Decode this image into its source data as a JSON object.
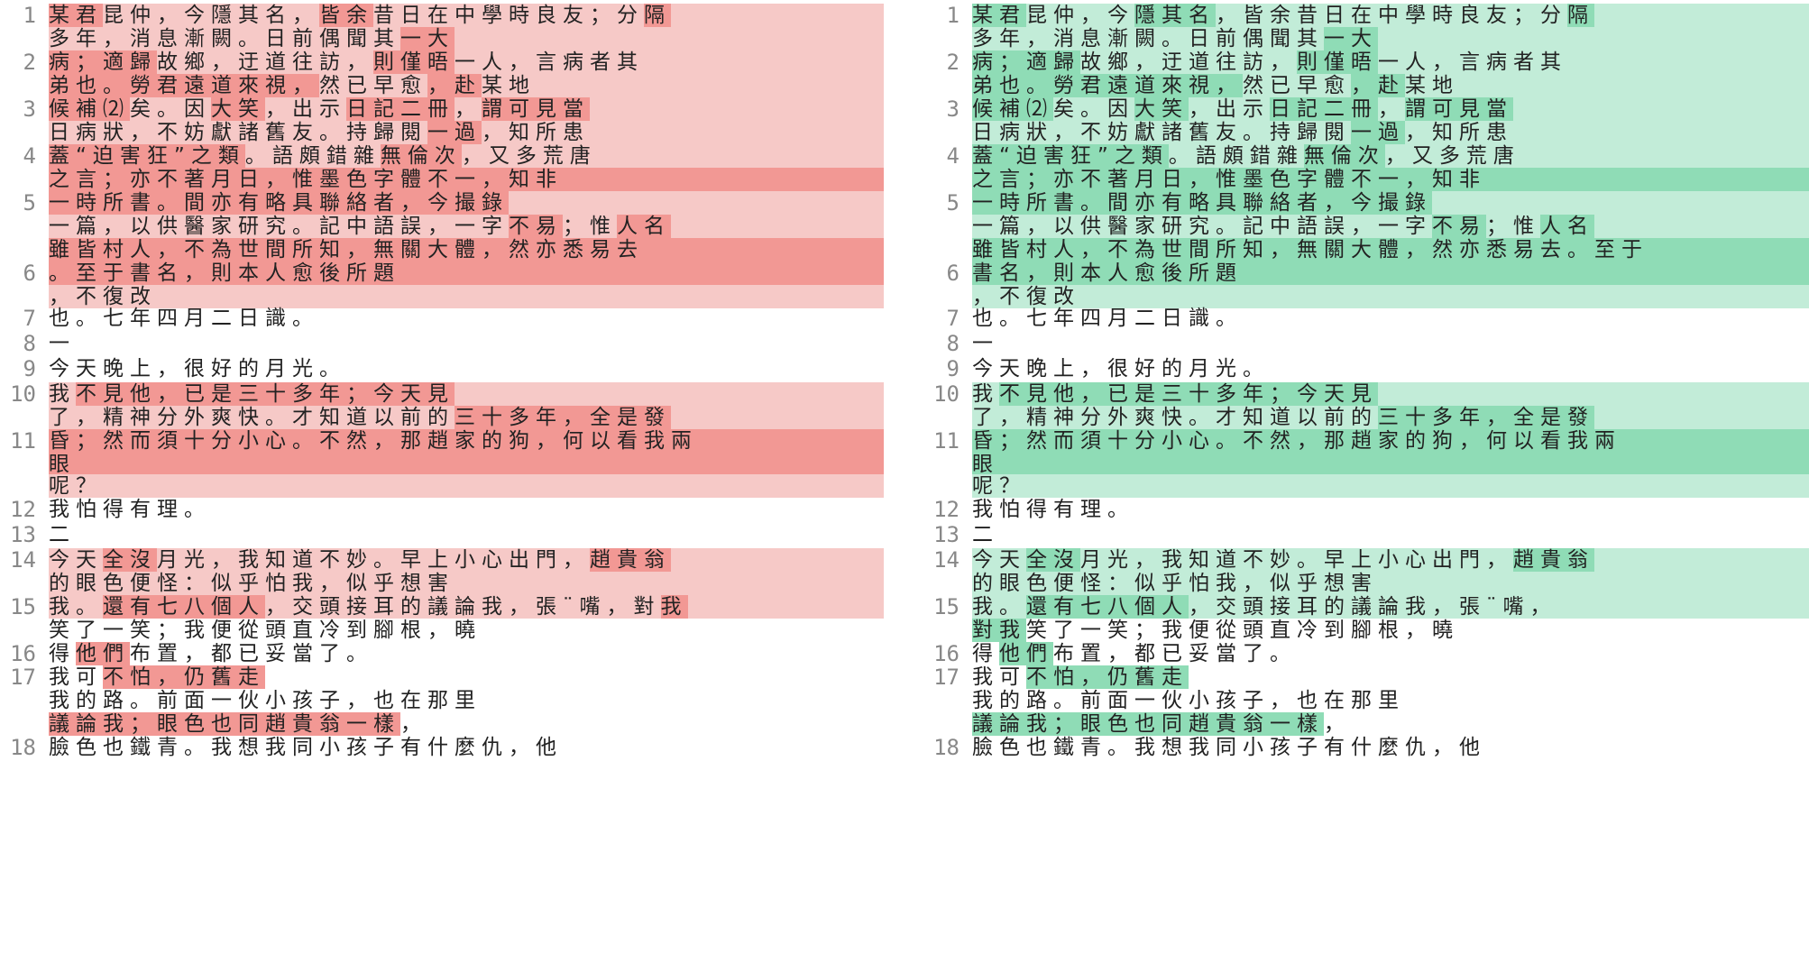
{
  "theme": {
    "left_light": "#f6c9c7",
    "left_dark": "#f29894",
    "right_light": "#c2ecd8",
    "right_dark": "#8fdcb6"
  },
  "left": {
    "lines": [
      {
        "no": "1",
        "text": "某君昆仲，今隱其名，皆余昔日在中學時良友；分隔",
        "band": "light",
        "hl": [
          [
            0,
            2
          ],
          [
            10,
            12
          ],
          [
            22,
            25
          ]
        ]
      },
      {
        "no": "",
        "text": "多年，消息漸闕。日前偶聞其一大",
        "band": "light",
        "hl": [
          [
            13,
            15
          ]
        ]
      },
      {
        "no": "2",
        "text": "病；適歸故鄉，迂道往訪，則僅晤一人，言病者其",
        "band": "light",
        "hl": [
          [
            0,
            4
          ],
          [
            12,
            15
          ]
        ]
      },
      {
        "no": "",
        "text": "弟也。勞君遠道來視，然已早愈，赴某地",
        "band": "light",
        "hl": [
          [
            0,
            10
          ],
          [
            14,
            16
          ]
        ]
      },
      {
        "no": "3",
        "text": "候補⑵矣。因大笑，出示日記二冊，謂可見當",
        "band": "light",
        "hl": [
          [
            0,
            3
          ],
          [
            6,
            8
          ],
          [
            11,
            15
          ],
          [
            16,
            20
          ]
        ]
      },
      {
        "no": "",
        "text": "日病狀，不妨獻諸舊友。持歸閱一過，知所患",
        "band": "light",
        "hl": [
          [
            14,
            16
          ]
        ]
      },
      {
        "no": "4",
        "text": "蓋“迫害狂”之類。語頗錯雜無倫次，又多荒唐",
        "band": "light",
        "hl": [
          [
            0,
            8
          ],
          [
            13,
            16
          ]
        ]
      },
      {
        "no": "",
        "text": "之言；亦不著月日，惟墨色字體不一，知非",
        "band": "dark",
        "hl": []
      },
      {
        "no": "5",
        "text": "一時所書。間亦有略具聯絡者，今撮錄",
        "band": "light",
        "hl": [
          [
            0,
            18
          ]
        ]
      },
      {
        "no": "",
        "text": "一篇，以供醫家研究。記中語誤，一字不易；惟人名",
        "band": "light",
        "hl": [
          [
            17,
            19
          ],
          [
            21,
            24
          ]
        ]
      },
      {
        "no": "",
        "text": "雖皆村人，不為世間所知，無關大體，然亦悉易去",
        "band": "dark",
        "hl": []
      },
      {
        "no": "6",
        "text": "。至于書名，則本人愈後所題",
        "band": "dark",
        "hl": []
      },
      {
        "no": "",
        "text": "，不復改",
        "band": "light",
        "hl": []
      },
      {
        "no": "7",
        "text": "也。七年四月二日識。",
        "band": "none",
        "hl": []
      },
      {
        "no": "8",
        "text": "一",
        "band": "none",
        "hl": []
      },
      {
        "no": "9",
        "text": "今天晚上，很好的月光。",
        "band": "none",
        "hl": []
      },
      {
        "no": "10",
        "text": "我不見他，已是三十多年；今天見",
        "band": "light",
        "hl": [
          [
            1,
            15
          ]
        ]
      },
      {
        "no": "",
        "text": "了，精神分外爽快。才知道以前的三十多年，全是發",
        "band": "light",
        "hl": [
          [
            15,
            23
          ]
        ]
      },
      {
        "no": "11",
        "text": "昏；然而須十分小心。不然，那趙家的狗，何以看我兩",
        "band": "dark",
        "hl": []
      },
      {
        "no": "",
        "text": "眼",
        "band": "dark",
        "hl": []
      },
      {
        "no": "",
        "text": "呢？",
        "band": "light",
        "hl": []
      },
      {
        "no": "12",
        "text": "我怕得有理。",
        "band": "none",
        "hl": []
      },
      {
        "no": "13",
        "text": "二",
        "band": "none",
        "hl": []
      },
      {
        "no": "14",
        "text": "今天全沒月光，我知道不妙。早上小心出門，趙貴翁",
        "band": "light",
        "hl": [
          [
            2,
            4
          ],
          [
            20,
            23
          ]
        ]
      },
      {
        "no": "",
        "text": "的眼色便怪：似乎怕我，似乎想害",
        "band": "light",
        "hl": []
      },
      {
        "no": "15",
        "text": "我。還有七八個人，交頭接耳的議論我，張¨嘴，對我",
        "band": "light",
        "hl": [
          [
            2,
            8
          ],
          [
            23,
            25
          ]
        ]
      },
      {
        "no": "",
        "text": "笑了一笑；我便從頭直冷到腳根，曉",
        "band": "none",
        "hl": []
      },
      {
        "no": "16",
        "text": "得他們布置，都已妥當了。",
        "band": "none",
        "hl": [
          [
            1,
            3
          ]
        ]
      },
      {
        "no": "17",
        "text": "我可不怕，仍舊走",
        "band": "none",
        "hl": [
          [
            2,
            8
          ]
        ]
      },
      {
        "no": "",
        "text": "我的路。前面一伙小孩子，也在那里",
        "band": "none",
        "hl": []
      },
      {
        "no": "",
        "text": "議論我；眼色也同趙貴翁一樣，",
        "band": "none",
        "hl": [
          [
            0,
            13
          ]
        ]
      },
      {
        "no": "18",
        "text": "臉色也鐵青。我想我同小孩子有什麼仇，他",
        "band": "none",
        "hl": []
      }
    ]
  },
  "right": {
    "lines": [
      {
        "no": "1",
        "text": "某君昆仲，今隱其名，皆余昔日在中學時良友；分隔",
        "band": "light",
        "hl": [
          [
            0,
            2
          ],
          [
            6,
            9
          ],
          [
            22,
            25
          ]
        ]
      },
      {
        "no": "",
        "text": "多年，消息漸闕。日前偶聞其一大",
        "band": "light",
        "hl": [
          [
            13,
            15
          ]
        ]
      },
      {
        "no": "2",
        "text": "病；適歸故鄉，迂道往訪，則僅晤一人，言病者其",
        "band": "light",
        "hl": [
          [
            0,
            4
          ],
          [
            12,
            15
          ]
        ]
      },
      {
        "no": "",
        "text": "弟也。勞君遠道來視，然已早愈，赴某地",
        "band": "light",
        "hl": [
          [
            0,
            10
          ],
          [
            14,
            16
          ]
        ]
      },
      {
        "no": "3",
        "text": "候補⑵矣。因大笑，出示日記二冊，謂可見當",
        "band": "light",
        "hl": [
          [
            0,
            3
          ],
          [
            6,
            8
          ],
          [
            11,
            15
          ],
          [
            16,
            20
          ]
        ]
      },
      {
        "no": "",
        "text": "日病狀，不妨獻諸舊友。持歸閱一過，知所患",
        "band": "light",
        "hl": [
          [
            14,
            16
          ]
        ]
      },
      {
        "no": "4",
        "text": "蓋“迫害狂”之類。語頗錯雜無倫次，又多荒唐",
        "band": "light",
        "hl": [
          [
            0,
            8
          ],
          [
            13,
            16
          ]
        ]
      },
      {
        "no": "",
        "text": "之言；亦不著月日，惟墨色字體不一，知非",
        "band": "dark",
        "hl": []
      },
      {
        "no": "5",
        "text": "一時所書。間亦有略具聯絡者，今撮錄",
        "band": "light",
        "hl": [
          [
            0,
            18
          ]
        ]
      },
      {
        "no": "",
        "text": "一篇，以供醫家研究。記中語誤，一字不易；惟人名",
        "band": "light",
        "hl": [
          [
            17,
            19
          ],
          [
            21,
            24
          ]
        ]
      },
      {
        "no": "",
        "text": "雖皆村人，不為世間所知，無關大體，然亦悉易去。至于",
        "band": "dark",
        "hl": []
      },
      {
        "no": "6",
        "text": "書名，則本人愈後所題",
        "band": "dark",
        "hl": []
      },
      {
        "no": "",
        "text": "，不復改",
        "band": "light",
        "hl": []
      },
      {
        "no": "7",
        "text": "也。七年四月二日識。",
        "band": "none",
        "hl": []
      },
      {
        "no": "8",
        "text": "一",
        "band": "none",
        "hl": []
      },
      {
        "no": "9",
        "text": "今天晚上，很好的月光。",
        "band": "none",
        "hl": []
      },
      {
        "no": "10",
        "text": "我不見他，已是三十多年；今天見",
        "band": "light",
        "hl": [
          [
            1,
            15
          ]
        ]
      },
      {
        "no": "",
        "text": "了，精神分外爽快。才知道以前的三十多年，全是發",
        "band": "light",
        "hl": [
          [
            15,
            23
          ]
        ]
      },
      {
        "no": "11",
        "text": "昏；然而須十分小心。不然，那趙家的狗，何以看我兩",
        "band": "dark",
        "hl": []
      },
      {
        "no": "",
        "text": "眼",
        "band": "dark",
        "hl": []
      },
      {
        "no": "",
        "text": "呢？",
        "band": "light",
        "hl": []
      },
      {
        "no": "12",
        "text": "我怕得有理。",
        "band": "none",
        "hl": []
      },
      {
        "no": "13",
        "text": "二",
        "band": "none",
        "hl": []
      },
      {
        "no": "14",
        "text": "今天全沒月光，我知道不妙。早上小心出門，趙貴翁",
        "band": "light",
        "hl": [
          [
            2,
            4
          ],
          [
            20,
            23
          ]
        ]
      },
      {
        "no": "",
        "text": "的眼色便怪：似乎怕我，似乎想害",
        "band": "light",
        "hl": []
      },
      {
        "no": "15",
        "text": "我。還有七八個人，交頭接耳的議論我，張¨嘴，",
        "band": "light",
        "hl": [
          [
            2,
            8
          ]
        ]
      },
      {
        "no": "",
        "text": "對我笑了一笑；我便從頭直冷到腳根，曉",
        "band": "none",
        "hl": [
          [
            0,
            2
          ]
        ]
      },
      {
        "no": "16",
        "text": "得他們布置，都已妥當了。",
        "band": "none",
        "hl": [
          [
            1,
            3
          ]
        ]
      },
      {
        "no": "17",
        "text": "我可不怕，仍舊走",
        "band": "none",
        "hl": [
          [
            2,
            8
          ]
        ]
      },
      {
        "no": "",
        "text": "我的路。前面一伙小孩子，也在那里",
        "band": "none",
        "hl": []
      },
      {
        "no": "",
        "text": "議論我；眼色也同趙貴翁一樣，",
        "band": "none",
        "hl": [
          [
            0,
            13
          ]
        ]
      },
      {
        "no": "18",
        "text": "臉色也鐵青。我想我同小孩子有什麼仇，他",
        "band": "none",
        "hl": []
      }
    ]
  }
}
